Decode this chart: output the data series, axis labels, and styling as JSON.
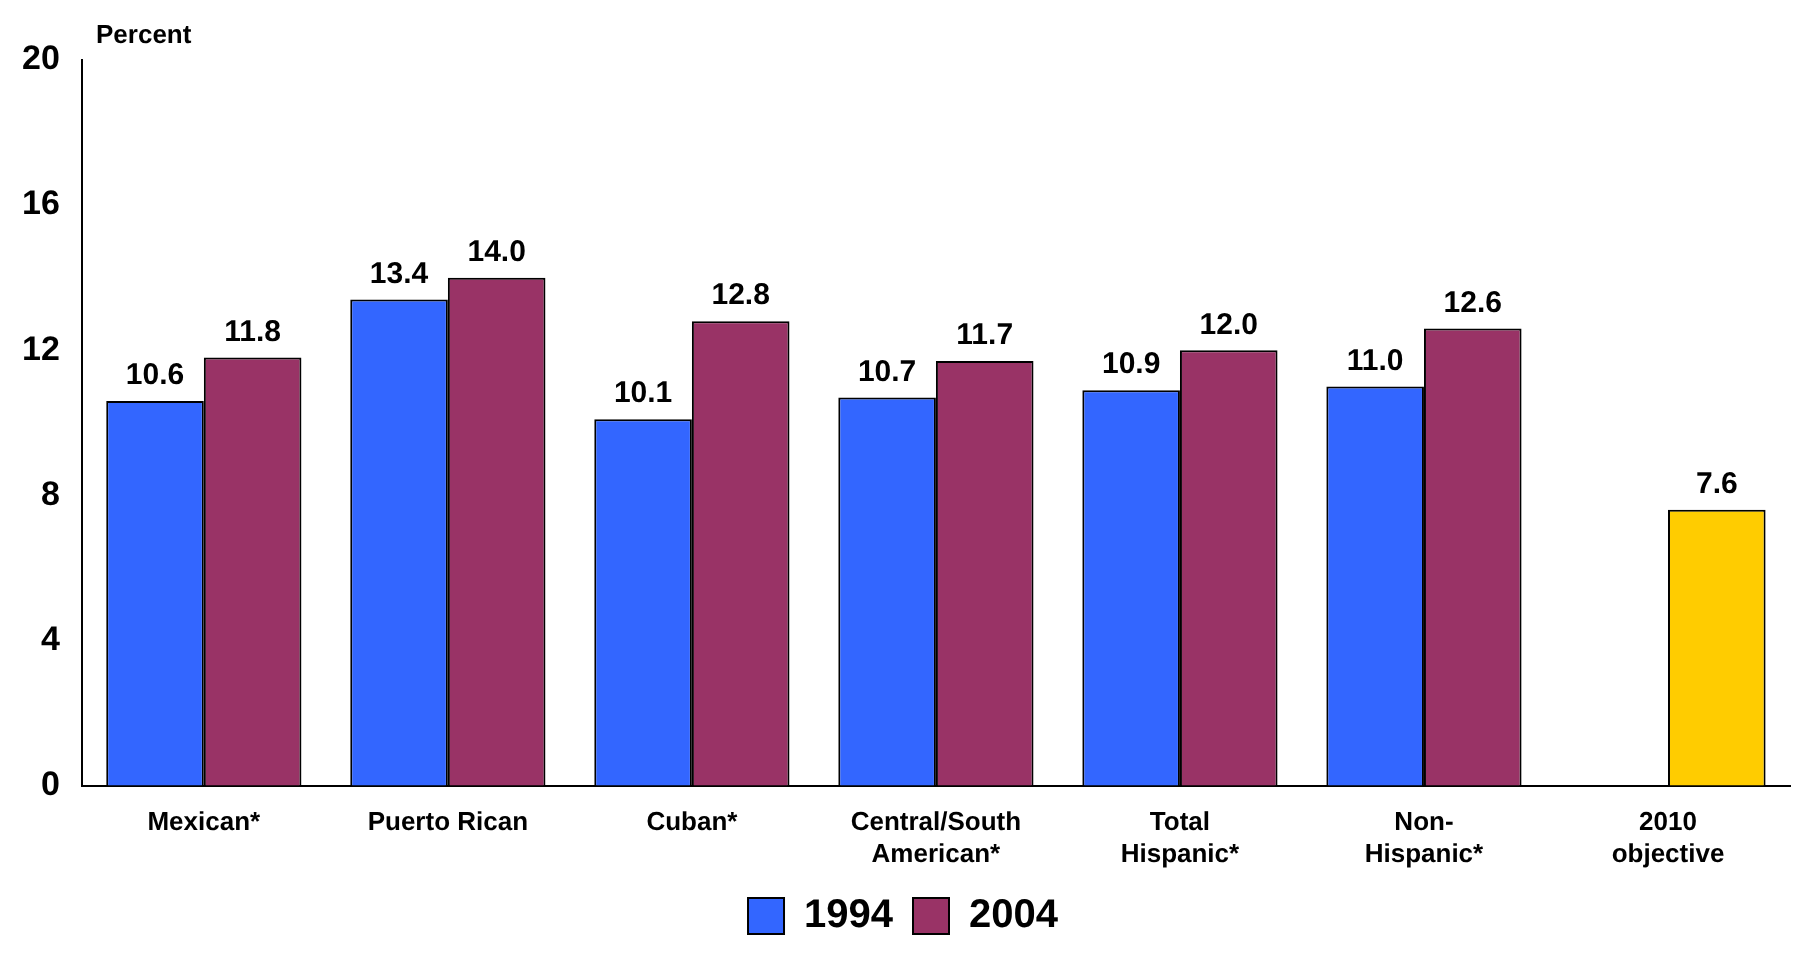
{
  "chart_data": {
    "type": "bar",
    "ylabel": "Percent",
    "categories": [
      "Mexican*",
      "Puerto Rican",
      "Cuban*",
      "Central/South American*",
      "Total Hispanic*",
      "Non-Hispanic*",
      "2010 objective"
    ],
    "series": [
      {
        "name": "1994",
        "color": "#3366ff",
        "values": [
          10.6,
          13.4,
          10.1,
          10.7,
          10.9,
          11.0,
          null
        ],
        "value_labels": [
          "10.6",
          "13.4",
          "10.1",
          "10.7",
          "10.9",
          "11.0",
          null
        ]
      },
      {
        "name": "2004",
        "color": "#993366",
        "colors": [
          "#993366",
          "#993366",
          "#993366",
          "#993366",
          "#993366",
          "#993366",
          "#ffcc00"
        ],
        "values": [
          11.8,
          14.0,
          12.8,
          11.7,
          12.0,
          12.6,
          7.6
        ],
        "value_labels": [
          "11.8",
          "14.0",
          "12.8",
          "11.7",
          "12.0",
          "12.6",
          "7.6"
        ]
      }
    ],
    "ylim": [
      0,
      20
    ],
    "yticks": [
      0,
      4,
      8,
      12,
      16,
      20
    ],
    "grid": false,
    "legend": "bottom"
  }
}
